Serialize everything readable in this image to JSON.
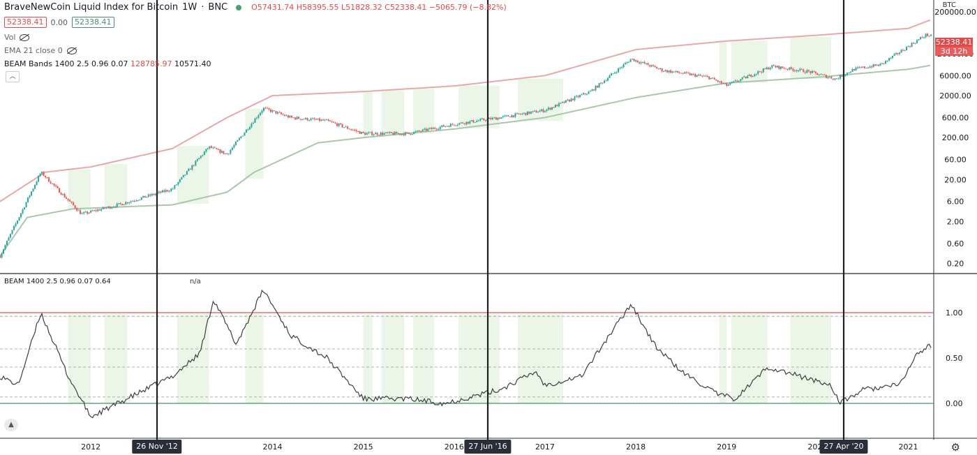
{
  "header": {
    "title": "BraveNewCoin Liquid Index for Bitcoin",
    "interval": "1W",
    "exchange": "BNC",
    "ohlc": "O57431.74 H58395.55 L51828.32 C52338.41 −5065.79 (−8.82%)",
    "badge_left": "52338.41",
    "badge_mid": "0.00",
    "badge_right": "52338.41"
  },
  "indicators": {
    "vol": "Vol",
    "ema": "EMA 21 close 0",
    "bands_label": "BEAM Bands 1400 2.5 0.96 0.07",
    "bands_upper": "128785.97",
    "bands_lower": "10571.40",
    "beam_label": "BEAM 1400 2.5 0.96 0.07  0.64",
    "beam_value": "n/a"
  },
  "price_axis": {
    "currency": "BTC",
    "ticks": [
      "200000.00",
      "20000.00",
      "6000.00",
      "2000.00",
      "600.00",
      "200.00",
      "60.00",
      "20.00",
      "6.00",
      "2.00",
      "0.60",
      "0.20"
    ],
    "last_price": "52338.41",
    "countdown": "3d 12h"
  },
  "osc_axis": {
    "ticks": [
      "1.00",
      "0.50",
      "0.00"
    ]
  },
  "time_axis": {
    "year_labels": [
      "2012",
      "2014",
      "2015",
      "2016",
      "2017",
      "2018",
      "2019",
      "2020",
      "2021"
    ],
    "markers": [
      "26 Nov '12",
      "27 Jun '16",
      "27 Apr '20"
    ]
  },
  "icons": {
    "settings": "gear-icon",
    "logo": "tradingview-logo-icon",
    "visibility": "eye-off-icon"
  },
  "colors": {
    "candle_up": "#26a69a",
    "candle_down": "#ef5350",
    "upper_band": "#e8a8a8",
    "lower_band": "#a9c7a9",
    "shade": "#e6f2e2",
    "osc_line": "#3d3d3d",
    "osc_upper_line": "#e05050",
    "marker_line": "#1f1f1f"
  },
  "chart_data": [
    {
      "type": "line",
      "title": "BraveNewCoin Liquid Index for Bitcoin",
      "scale": "log",
      "series": [
        {
          "name": "BEAM Bands upper",
          "x": [
            2011.0,
            2011.5,
            2012.0,
            2012.9,
            2013.5,
            2014.0,
            2015.0,
            2016.0,
            2017.0,
            2018.0,
            2019.0,
            2020.0,
            2021.0,
            2021.25
          ],
          "y": [
            6,
            30,
            40,
            110,
            600,
            2000,
            2500,
            3400,
            6000,
            25000,
            40000,
            55000,
            80000,
            128785.97
          ]
        },
        {
          "name": "BEAM Bands lower",
          "x": [
            2011.0,
            2011.3,
            2011.8,
            2012.9,
            2013.5,
            2013.8,
            2014.5,
            2015.0,
            2016.0,
            2017.0,
            2018.0,
            2019.0,
            2020.0,
            2021.0,
            2021.25
          ],
          "y": [
            0.3,
            2.5,
            4,
            5,
            10,
            30,
            150,
            200,
            320,
            600,
            1800,
            4000,
            5500,
            8500,
            10571.4
          ]
        },
        {
          "name": "Price",
          "x": [
            2011.0,
            2011.45,
            2011.9,
            2012.3,
            2012.9,
            2013.3,
            2013.5,
            2013.9,
            2014.2,
            2014.6,
            2015.0,
            2015.5,
            2016.0,
            2016.5,
            2017.0,
            2017.5,
            2017.95,
            2018.3,
            2018.8,
            2019.0,
            2019.5,
            2019.9,
            2020.2,
            2020.4,
            2020.7,
            2021.0,
            2021.2,
            2021.25
          ],
          "y": [
            0.3,
            30,
            3,
            5,
            12,
            120,
            80,
            1000,
            600,
            500,
            250,
            250,
            420,
            600,
            900,
            2500,
            15000,
            8000,
            5500,
            3500,
            10000,
            7500,
            5000,
            8500,
            11000,
            30000,
            57000,
            52338.41
          ]
        }
      ],
      "ylim": [
        0.2,
        200000
      ]
    },
    {
      "type": "line",
      "title": "BEAM 1400 2.5 0.96 0.07",
      "series": [
        {
          "name": "BEAM",
          "x": [
            2011.0,
            2011.2,
            2011.45,
            2011.75,
            2012.0,
            2012.4,
            2012.9,
            2013.2,
            2013.35,
            2013.6,
            2013.9,
            2014.2,
            2014.6,
            2015.0,
            2015.5,
            2015.9,
            2016.5,
            2016.9,
            2017.0,
            2017.4,
            2017.95,
            2018.2,
            2018.5,
            2018.9,
            2019.1,
            2019.45,
            2019.8,
            2020.15,
            2020.25,
            2020.5,
            2020.9,
            2021.1,
            2021.25
          ],
          "y": [
            0.3,
            0.2,
            1.0,
            0.3,
            -0.15,
            0.05,
            0.3,
            0.55,
            1.15,
            0.65,
            1.25,
            0.75,
            0.5,
            0.05,
            0.05,
            0.0,
            0.15,
            0.35,
            0.2,
            0.3,
            1.1,
            0.65,
            0.35,
            0.1,
            0.05,
            0.4,
            0.3,
            0.2,
            0.0,
            0.15,
            0.2,
            0.55,
            0.64
          ]
        }
      ],
      "ylim": [
        -0.25,
        1.25
      ]
    }
  ]
}
